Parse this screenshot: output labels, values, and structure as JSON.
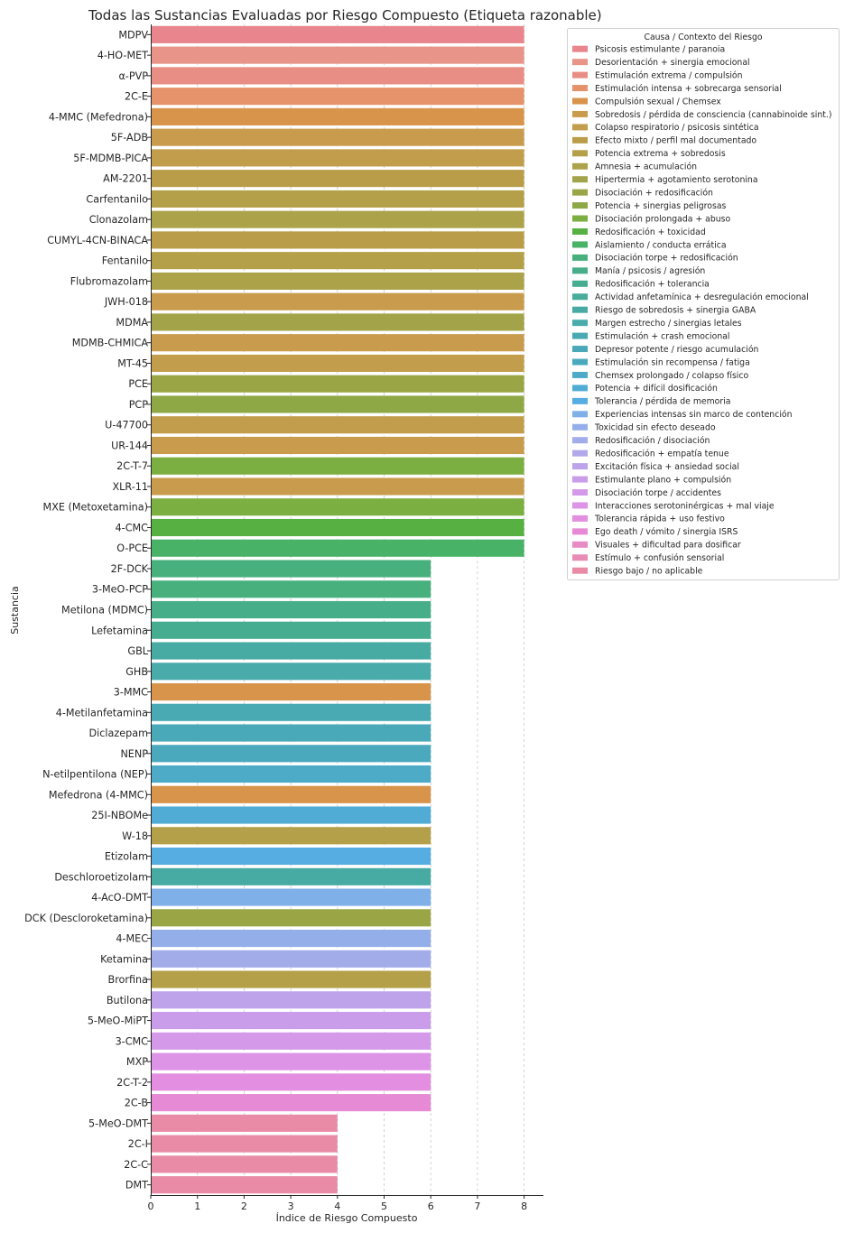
{
  "chart_data": {
    "type": "bar",
    "orientation": "horizontal",
    "title": "Todas las Sustancias Evaluadas por Riesgo Compuesto (Etiqueta razonable)",
    "xlabel": "Índice de Riesgo Compuesto",
    "ylabel": "Sustancia",
    "xlim": [
      0,
      8.4
    ],
    "xticks": [
      0,
      1,
      2,
      3,
      4,
      5,
      6,
      7,
      8
    ],
    "grid": "x dashed",
    "legend_title": "Causa / Contexto del Riesgo",
    "legend_position": "upper-right outside",
    "legend": [
      {
        "label": "Psicosis estimulante / paranoia",
        "color": "#e9858c"
      },
      {
        "label": "Desorientación + sinergia emocional",
        "color": "#e89488"
      },
      {
        "label": "Estimulación extrema / compulsión",
        "color": "#e88e84"
      },
      {
        "label": "Estimulación intensa + sobrecarga sensorial",
        "color": "#e6936c"
      },
      {
        "label": "Compulsión sexual / Chemsex",
        "color": "#d8944a"
      },
      {
        "label": "Sobredosis / pérdida de consciencia (cannabinoide sint.)",
        "color": "#c99b4d"
      },
      {
        "label": "Colapso respiratorio / psicosis sintética",
        "color": "#c29e4c"
      },
      {
        "label": "Efecto mixto / perfil mal documentado",
        "color": "#ba9d48"
      },
      {
        "label": "Potencia extrema + sobredosis",
        "color": "#b5a04a"
      },
      {
        "label": "Amnesia + acumulación",
        "color": "#aba24a"
      },
      {
        "label": "Hipertermia + agotamiento serotonina",
        "color": "#a3a349"
      },
      {
        "label": "Disociación + redosificación",
        "color": "#9aa646"
      },
      {
        "label": "Potencia + sinergias peligrosas",
        "color": "#8fa846"
      },
      {
        "label": "Disociación prolongada + abuso",
        "color": "#7caf41"
      },
      {
        "label": "Redosificación + toxicidad",
        "color": "#56b142"
      },
      {
        "label": "Aislamiento / conducta errática",
        "color": "#48b267"
      },
      {
        "label": "Disociación torpe + redosificación",
        "color": "#47b07d"
      },
      {
        "label": "Manía / psicosis / agresión",
        "color": "#46ae88"
      },
      {
        "label": "Redosificación + tolerancia",
        "color": "#46ad91"
      },
      {
        "label": "Actividad anfetamínica + desregulación emocional",
        "color": "#47ac9a"
      },
      {
        "label": "Riesgo de sobredosis + sinergia GABA",
        "color": "#48aba3"
      },
      {
        "label": "Margen estrecho / sinergias letales",
        "color": "#4aabab"
      },
      {
        "label": "Estimulación + crash emocional",
        "color": "#4aaab3"
      },
      {
        "label": "Depresor potente / riesgo acumulación",
        "color": "#4aa9b8"
      },
      {
        "label": "Estimulación sin recompensa / fatiga",
        "color": "#4ba9be"
      },
      {
        "label": "Chemsex prolongado / colapso físico",
        "color": "#4dabc8"
      },
      {
        "label": "Potencia + difícil dosificación",
        "color": "#50acd4"
      },
      {
        "label": "Tolerancia / pérdida de memoria",
        "color": "#56ade2"
      },
      {
        "label": "Experiencias intensas sin marco de contención",
        "color": "#7fb0e8"
      },
      {
        "label": "Toxicidad sin efecto deseado",
        "color": "#93aee8"
      },
      {
        "label": "Redosificación / disociación",
        "color": "#a1ace9"
      },
      {
        "label": "Redosificación + empatía tenue",
        "color": "#b0a8ea"
      },
      {
        "label": "Excitación física + ansiedad social",
        "color": "#bea3eb"
      },
      {
        "label": "Estimulante plano + compulsión",
        "color": "#c99dea"
      },
      {
        "label": "Disociación torpe / accidentes",
        "color": "#d499e9"
      },
      {
        "label": "Interacciones serotoninérgicas + mal viaje",
        "color": "#dd93e6"
      },
      {
        "label": "Tolerancia rápida + uso festivo",
        "color": "#e38ee0"
      },
      {
        "label": "Ego death / vómito / sinergia ISRS",
        "color": "#e68ad5"
      },
      {
        "label": "Visuales + dificultad para dosificar",
        "color": "#e88bc4"
      },
      {
        "label": "Estímulo + confusión sensorial",
        "color": "#e98cb5"
      },
      {
        "label": "Riesgo bajo / no aplicable",
        "color": "#e98ba7"
      }
    ],
    "categories": [
      "MDPV",
      "4-HO-MET",
      "α-PVP",
      "2C-E",
      "4-MMC (Mefedrona)",
      "5F-ADB",
      "5F-MDMB-PICA",
      "AM-2201",
      "Carfentanilo",
      "Clonazolam",
      "CUMYL-4CN-BINACA",
      "Fentanilo",
      "Flubromazolam",
      "JWH-018",
      "MDMA",
      "MDMB-CHMICA",
      "MT-45",
      "PCE",
      "PCP",
      "U-47700",
      "UR-144",
      "2C-T-7",
      "XLR-11",
      "MXE (Metoxetamina)",
      "4-CMC",
      "O-PCE",
      "2F-DCK",
      "3-MeO-PCP",
      "Metilona (MDMC)",
      "Lefetamina",
      "GBL",
      "GHB",
      "3-MMC",
      "4-Metilanfetamina",
      "Diclazepam",
      "NENP",
      "N-etilpentilona (NEP)",
      "Mefedrona (4-MMC)",
      "25I-NBOMe",
      "W-18",
      "Etizolam",
      "Deschloroetizolam",
      "4-AcO-DMT",
      "DCK (Descloroketamina)",
      "4-MEC",
      "Ketamina",
      "Brorfina",
      "Butilona",
      "5-MeO-MiPT",
      "3-CMC",
      "MXP",
      "2C-T-2",
      "2C-B",
      "5-MeO-DMT",
      "2C-I",
      "2C-C",
      "DMT"
    ],
    "values": [
      8,
      8,
      8,
      8,
      8,
      8,
      8,
      8,
      8,
      8,
      8,
      8,
      8,
      8,
      8,
      8,
      8,
      8,
      8,
      8,
      8,
      8,
      8,
      8,
      8,
      8,
      6,
      6,
      6,
      6,
      6,
      6,
      6,
      6,
      6,
      6,
      6,
      6,
      6,
      6,
      6,
      6,
      6,
      6,
      6,
      6,
      6,
      6,
      6,
      6,
      6,
      6,
      6,
      4,
      4,
      4,
      4
    ],
    "colors": [
      "#e9858c",
      "#e89488",
      "#e88e84",
      "#e6936c",
      "#d8944a",
      "#c99b4d",
      "#c29e4c",
      "#ba9d48",
      "#b5a04a",
      "#aba24a",
      "#ba9d48",
      "#b5a04a",
      "#aba24a",
      "#c99b4d",
      "#a3a349",
      "#c99b4d",
      "#c29e4c",
      "#9aa646",
      "#8fa846",
      "#c29e4c",
      "#c99b4d",
      "#7caf41",
      "#c99b4d",
      "#7caf41",
      "#56b142",
      "#48b267",
      "#47b07d",
      "#47b07d",
      "#46ae88",
      "#46ad91",
      "#48aba3",
      "#4aabab",
      "#d8944a",
      "#4aaab3",
      "#4aa9b8",
      "#4ba9be",
      "#4dabc8",
      "#d8944a",
      "#50acd4",
      "#b5a04a",
      "#56ade2",
      "#48aba3",
      "#7fb0e8",
      "#9aa646",
      "#93aee8",
      "#a1ace9",
      "#b5a04a",
      "#bea3eb",
      "#c99dea",
      "#d499e9",
      "#dd93e6",
      "#e38ee0",
      "#e68ad5",
      "#e98ba7",
      "#e98ba7",
      "#e98ba7",
      "#e98ba7"
    ]
  }
}
